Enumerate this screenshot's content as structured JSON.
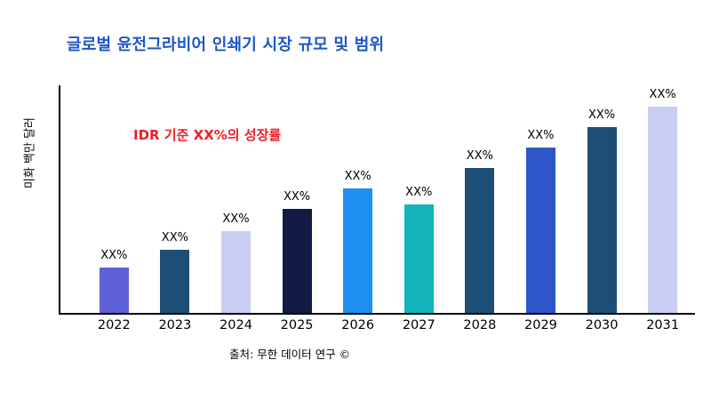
{
  "page": {
    "background": "#ffffff"
  },
  "chart_data": {
    "type": "bar",
    "title": "글로벌 윤전그라비어 인쇄기 시장 규모 및 범위",
    "title_color": "#1d56c9",
    "ylabel": "미화 백만 달러",
    "xlabel": "",
    "annotation": "IDR 기준 XX%의 성장률",
    "annotation_color": "#ee1f25",
    "source": "출처: 무한 데이터 연구 ©",
    "categories": [
      "2022",
      "2023",
      "2024",
      "2025",
      "2026",
      "2027",
      "2028",
      "2029",
      "2030",
      "2031"
    ],
    "values": [
      20,
      28,
      36,
      46,
      55,
      48,
      64,
      73,
      82,
      91
    ],
    "bar_labels": [
      "XX%",
      "XX%",
      "XX%",
      "XX%",
      "XX%",
      "XX%",
      "XX%",
      "XX%",
      "XX%",
      "XX%"
    ],
    "colors": [
      "#5e60d8",
      "#1f4e74",
      "#c9cdf2",
      "#121b44",
      "#1e8ef0",
      "#12b3ba",
      "#1f4e74",
      "#2e56c9",
      "#1f4e74",
      "#c9cdf2"
    ],
    "ylim": [
      0,
      100
    ],
    "grid": false,
    "legend": false,
    "axis_color": "#000000"
  }
}
